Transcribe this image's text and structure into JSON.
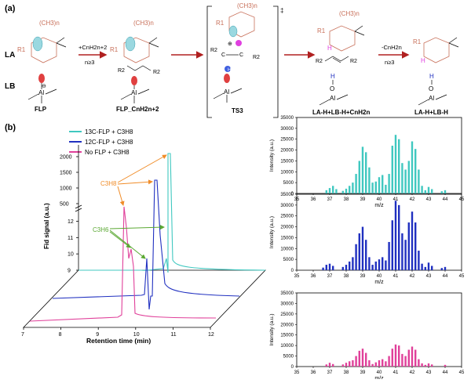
{
  "panel_a": {
    "label": "(a)",
    "row_labels": [
      "LA",
      "LB"
    ],
    "methyl_group": "(CH3)n",
    "r1": "R1",
    "r2": "R2",
    "al": "Al",
    "o": "O",
    "h": "H",
    "c": "C",
    "minus_sign": "⊖",
    "plus_sign": "⊕",
    "ts_dagger": "‡",
    "reagent_add": "+CnH2n+2",
    "reagent_remove": "-CnH2n",
    "condition": "n≥3",
    "species": [
      "FLP",
      "FLP_CnH2n+2",
      "TS3",
      "LA-H+LB-H+CnH2n",
      "LA-H+LB-H"
    ]
  },
  "panel_b": {
    "label": "(b)",
    "legend": [
      "13C-FLP + C3H8",
      "12C-FLP + C3H8",
      "No FLP + C3H8"
    ],
    "series_colors": [
      "#40c8c0",
      "#2030c0",
      "#e0409a"
    ],
    "peak_labels": {
      "propane": "C3H8",
      "propylene": "C3H6"
    },
    "arrow_colors": {
      "propane": "#f08c28",
      "propylene": "#5aa832"
    }
  },
  "chart_data": [
    {
      "type": "line",
      "title": "",
      "xlabel": "Retention time (min)",
      "ylabel": "Fid signal (a.u.)",
      "x_ticks": [
        7,
        8,
        9,
        10,
        11,
        12
      ],
      "y_ticks_lower": [
        9,
        10,
        11,
        12
      ],
      "y_ticks_upper": [
        500,
        1000,
        1500,
        2000
      ],
      "axis_break": true,
      "series": [
        {
          "name": "13C-FLP + C3H8",
          "peaks": [
            {
              "label": "C3H6",
              "x": 9.78,
              "y": 11.3
            },
            {
              "label": "C3H8",
              "x": 10.05,
              "y": 2100
            }
          ]
        },
        {
          "name": "12C-FLP + C3H8",
          "peaks": [
            {
              "label": "C3H6",
              "x": 9.7,
              "y": 11.2
            },
            {
              "label": "C3H8",
              "x": 9.92,
              "y": 1100
            }
          ]
        },
        {
          "name": "No FLP + C3H8",
          "peaks": [
            {
              "label": "C3H6",
              "x": 9.62,
              "y": 11.0
            },
            {
              "label": "C3H8",
              "x": 9.72,
              "y": 12.4
            }
          ]
        }
      ]
    },
    {
      "type": "bar",
      "title": "",
      "series_name": "13C-FLP + C3H8",
      "xlabel": "m/z",
      "ylabel": "Intensity (a.u.)",
      "xlim": [
        35,
        45
      ],
      "ylim": [
        0,
        35000
      ],
      "x_ticks": [
        35,
        36,
        37,
        38,
        39,
        40,
        41,
        42,
        43,
        44,
        45
      ],
      "y_ticks": [
        0,
        5000,
        10000,
        15000,
        20000,
        25000,
        30000,
        35000
      ],
      "bars": [
        [
          36.8,
          1500
        ],
        [
          37,
          2500
        ],
        [
          37.2,
          3500
        ],
        [
          37.4,
          2000
        ],
        [
          37.8,
          1200
        ],
        [
          38,
          2200
        ],
        [
          38.2,
          3500
        ],
        [
          38.4,
          5000
        ],
        [
          38.6,
          9000
        ],
        [
          38.8,
          15000
        ],
        [
          39,
          21500
        ],
        [
          39.2,
          19000
        ],
        [
          39.4,
          12000
        ],
        [
          39.6,
          5000
        ],
        [
          39.8,
          5500
        ],
        [
          40,
          7500
        ],
        [
          40.2,
          8500
        ],
        [
          40.4,
          4000
        ],
        [
          40.6,
          9000
        ],
        [
          40.8,
          22000
        ],
        [
          41,
          27000
        ],
        [
          41.2,
          25000
        ],
        [
          41.4,
          14000
        ],
        [
          41.6,
          11000
        ],
        [
          41.8,
          15000
        ],
        [
          42,
          24000
        ],
        [
          42.2,
          20500
        ],
        [
          42.4,
          11000
        ],
        [
          42.6,
          3500
        ],
        [
          42.8,
          1500
        ],
        [
          43,
          3000
        ],
        [
          43.2,
          2000
        ],
        [
          43.8,
          1000
        ],
        [
          44,
          1500
        ]
      ]
    },
    {
      "type": "bar",
      "title": "",
      "series_name": "12C-FLP + C3H8",
      "xlabel": "m/z",
      "ylabel": "Intensity (a.u.)",
      "xlim": [
        35,
        45
      ],
      "ylim": [
        0,
        35000
      ],
      "x_ticks": [
        35,
        36,
        37,
        38,
        39,
        40,
        41,
        42,
        43,
        44,
        45
      ],
      "y_ticks": [
        0,
        5000,
        10000,
        15000,
        20000,
        25000,
        30000,
        35000
      ],
      "bars": [
        [
          36.6,
          1200
        ],
        [
          36.8,
          2500
        ],
        [
          37,
          3000
        ],
        [
          37.2,
          2000
        ],
        [
          37.8,
          1500
        ],
        [
          38,
          2500
        ],
        [
          38.2,
          4000
        ],
        [
          38.4,
          6000
        ],
        [
          38.6,
          12000
        ],
        [
          38.8,
          17000
        ],
        [
          39,
          20000
        ],
        [
          39.2,
          14000
        ],
        [
          39.4,
          6000
        ],
        [
          39.6,
          2500
        ],
        [
          39.8,
          4000
        ],
        [
          40,
          5000
        ],
        [
          40.2,
          6000
        ],
        [
          40.4,
          4500
        ],
        [
          40.6,
          13000
        ],
        [
          40.8,
          23000
        ],
        [
          41,
          32000
        ],
        [
          41.2,
          30000
        ],
        [
          41.4,
          17000
        ],
        [
          41.6,
          14000
        ],
        [
          41.8,
          22000
        ],
        [
          42,
          27000
        ],
        [
          42.2,
          22000
        ],
        [
          42.4,
          9000
        ],
        [
          42.6,
          3000
        ],
        [
          42.8,
          1500
        ],
        [
          43,
          3500
        ],
        [
          43.2,
          2000
        ],
        [
          43.8,
          1000
        ],
        [
          44,
          1500
        ]
      ]
    },
    {
      "type": "bar",
      "title": "",
      "series_name": "No FLP + C3H8",
      "xlabel": "m/z",
      "ylabel": "Intensity (a.u.)",
      "xlim": [
        35,
        45
      ],
      "ylim": [
        0,
        35000
      ],
      "x_ticks": [
        35,
        36,
        37,
        38,
        39,
        40,
        41,
        42,
        43,
        44,
        45
      ],
      "y_ticks": [
        0,
        5000,
        10000,
        15000,
        20000,
        25000,
        30000,
        35000
      ],
      "bars": [
        [
          36.8,
          1000
        ],
        [
          37,
          1800
        ],
        [
          37.2,
          1200
        ],
        [
          37.8,
          1000
        ],
        [
          38,
          1800
        ],
        [
          38.2,
          2500
        ],
        [
          38.4,
          3000
        ],
        [
          38.6,
          5000
        ],
        [
          38.8,
          7500
        ],
        [
          39,
          8500
        ],
        [
          39.2,
          6500
        ],
        [
          39.4,
          3000
        ],
        [
          39.6,
          1200
        ],
        [
          39.8,
          2000
        ],
        [
          40,
          3000
        ],
        [
          40.2,
          3500
        ],
        [
          40.4,
          2500
        ],
        [
          40.6,
          5000
        ],
        [
          40.8,
          8500
        ],
        [
          41,
          10500
        ],
        [
          41.2,
          10000
        ],
        [
          41.4,
          6000
        ],
        [
          41.6,
          5000
        ],
        [
          41.8,
          8000
        ],
        [
          42,
          9500
        ],
        [
          42.2,
          8000
        ],
        [
          42.4,
          3500
        ],
        [
          42.6,
          1500
        ],
        [
          42.8,
          800
        ],
        [
          43,
          1500
        ],
        [
          43.2,
          1000
        ],
        [
          44,
          800
        ]
      ]
    }
  ]
}
